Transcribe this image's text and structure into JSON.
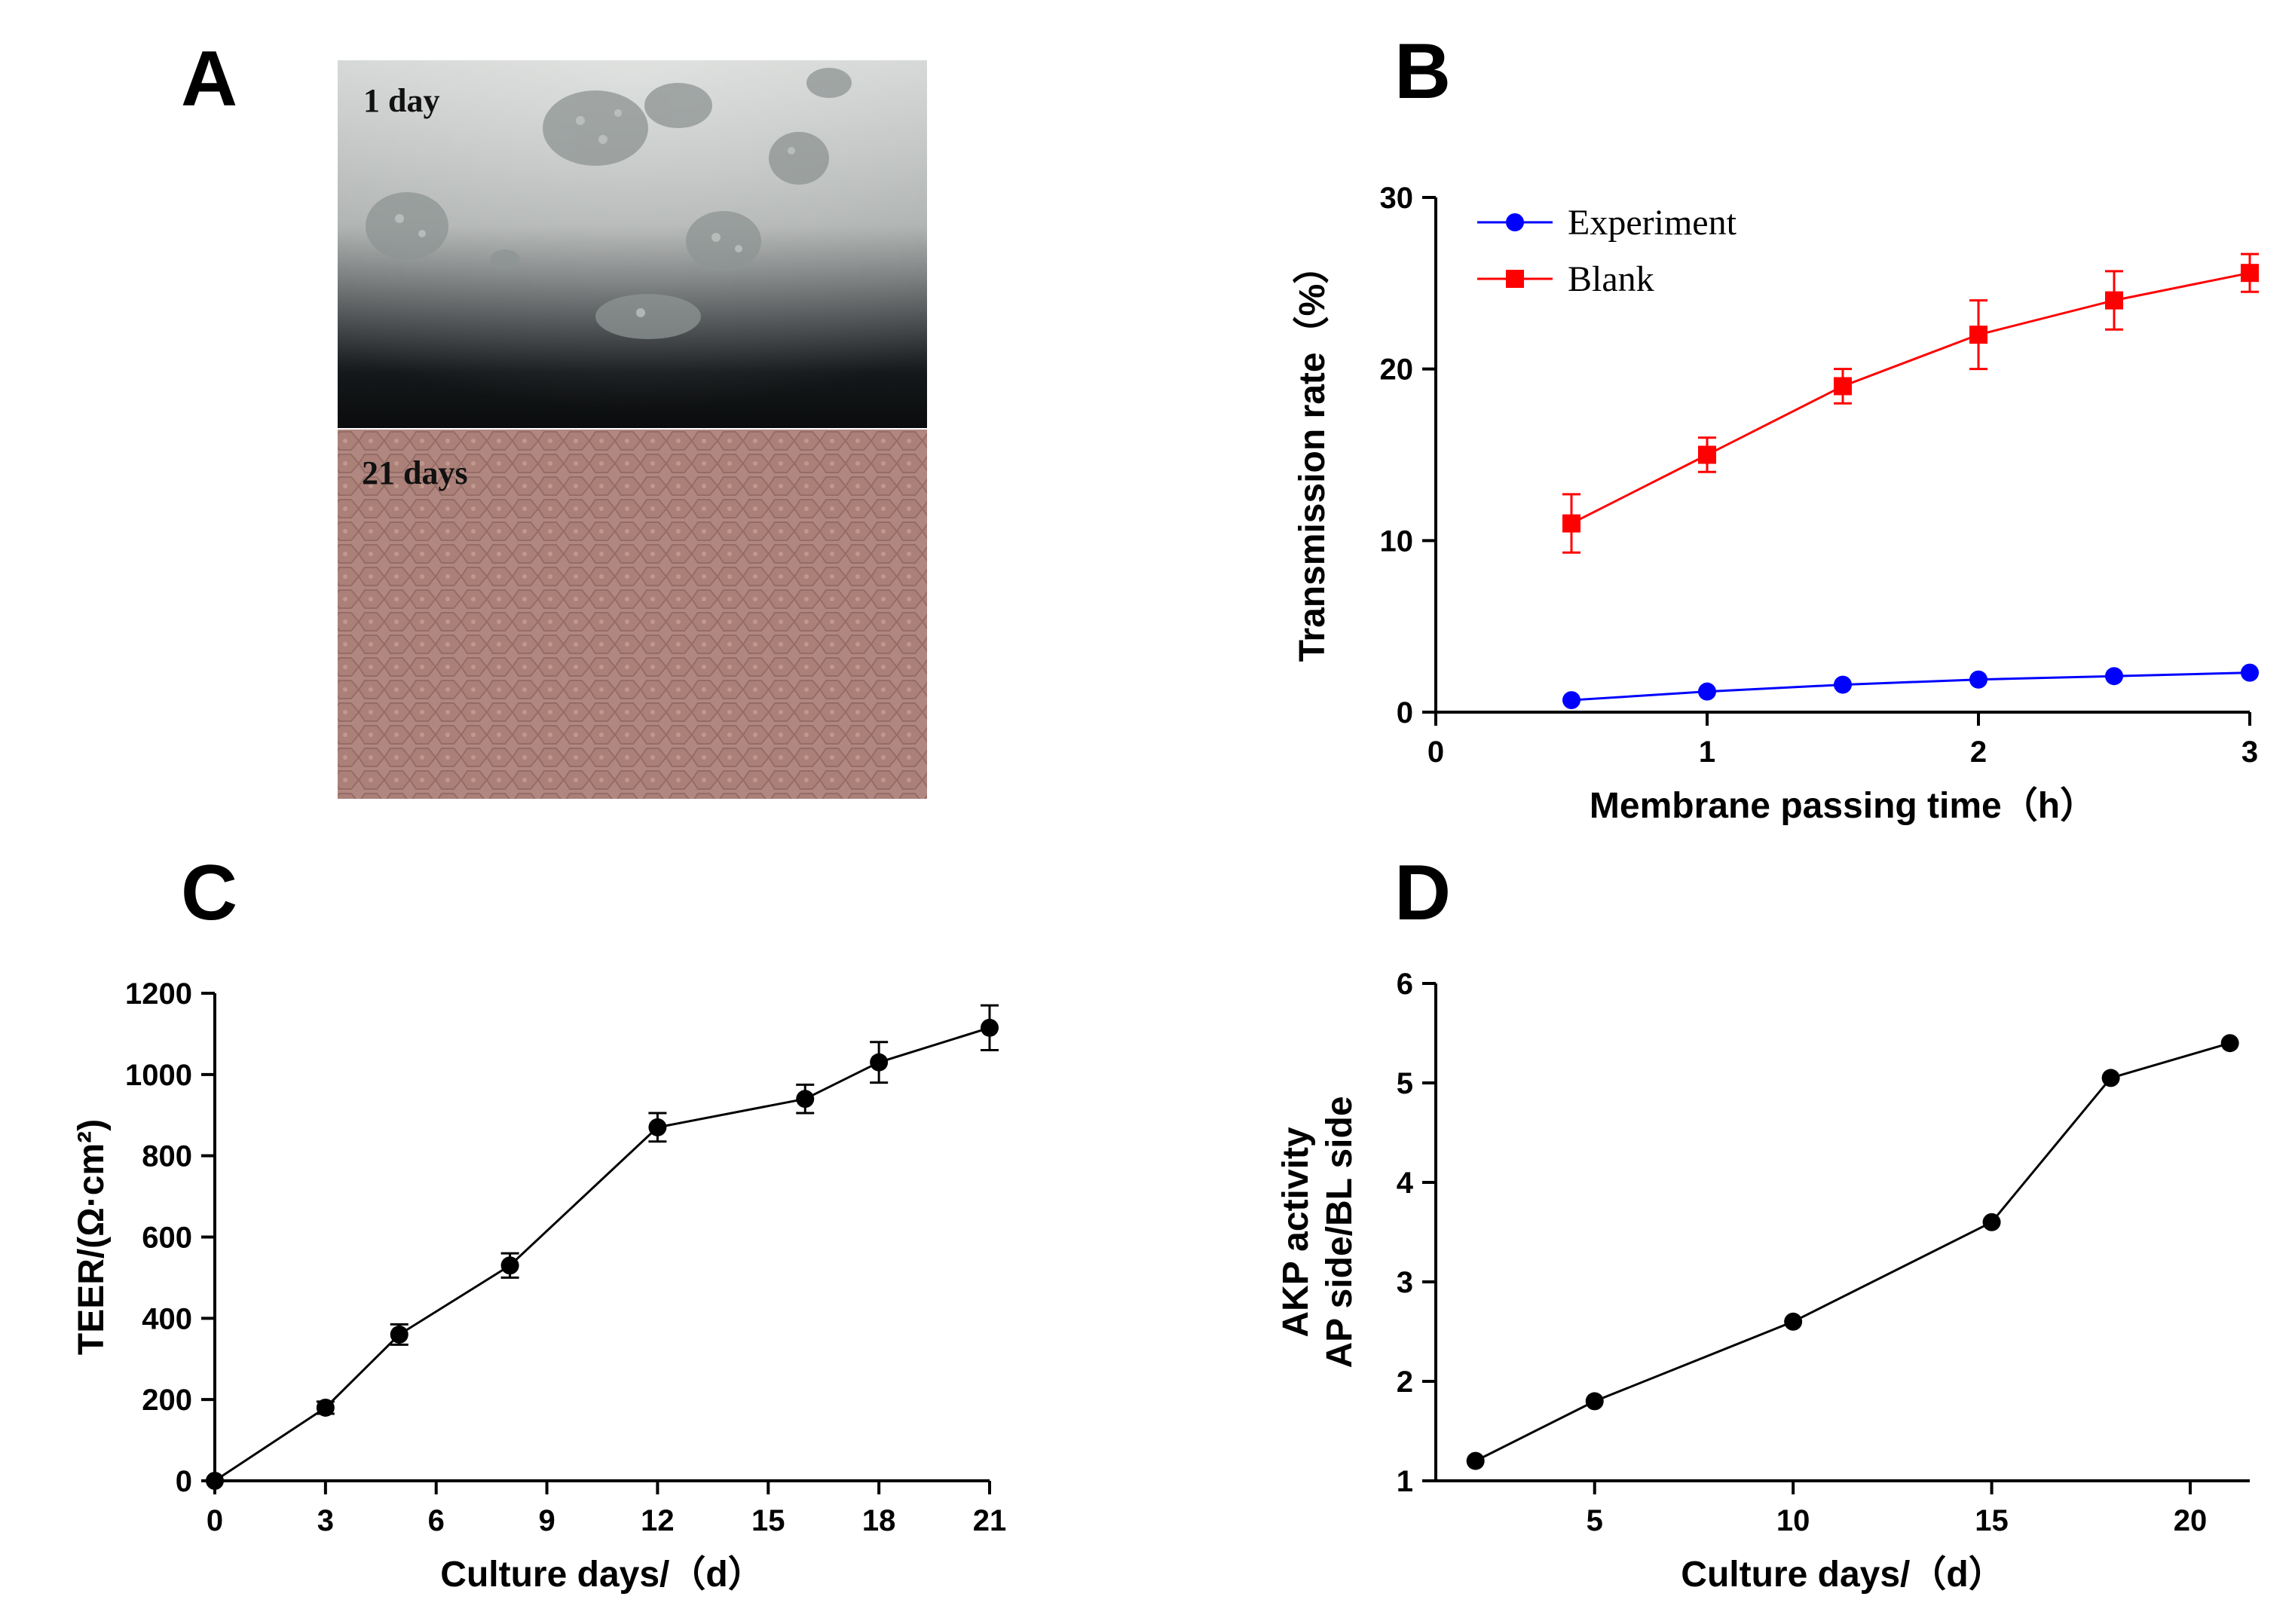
{
  "panels": {
    "a": {
      "letter": "A",
      "photo_top_label": "1 day",
      "photo_bottom_label": "21 days"
    },
    "b": {
      "letter": "B"
    },
    "c": {
      "letter": "C"
    },
    "d": {
      "letter": "D"
    }
  },
  "chart_data": [
    {
      "panel": "B",
      "type": "line",
      "xlabel": "Membrane passing time（h）",
      "ylabel": "Transmission rate（%）",
      "xlim": [
        0,
        3
      ],
      "ylim": [
        0,
        30
      ],
      "xticks": [
        0,
        1,
        2,
        3
      ],
      "yticks": [
        0,
        10,
        20,
        30
      ],
      "grid": false,
      "legend_position": "top-left",
      "x": [
        0.5,
        1.0,
        1.5,
        2.0,
        2.5,
        3.0
      ],
      "series": [
        {
          "name": "Experiment",
          "color": "#0000ff",
          "marker": "circle",
          "values": [
            0.7,
            1.2,
            1.6,
            1.9,
            2.1,
            2.3
          ],
          "errors": [
            0,
            0,
            0,
            0,
            0,
            0
          ]
        },
        {
          "name": "Blank",
          "color": "#ff0000",
          "marker": "square",
          "values": [
            11.0,
            15.0,
            19.0,
            22.0,
            24.0,
            25.6
          ],
          "errors": [
            1.7,
            1.0,
            1.0,
            2.0,
            1.7,
            1.1
          ]
        }
      ]
    },
    {
      "panel": "C",
      "type": "line",
      "xlabel": "Culture days/（d）",
      "ylabel": "TEER/(Ω·cm²)",
      "xlim": [
        0,
        21
      ],
      "ylim": [
        0,
        1200
      ],
      "xticks": [
        0,
        3,
        6,
        9,
        12,
        15,
        18,
        21
      ],
      "yticks": [
        0,
        200,
        400,
        600,
        800,
        1000,
        1200
      ],
      "grid": false,
      "series": [
        {
          "color": "#000000",
          "marker": "circle",
          "x": [
            0,
            3,
            5,
            8,
            12,
            16,
            18,
            21
          ],
          "values": [
            0,
            180,
            360,
            530,
            870,
            940,
            1030,
            1115
          ],
          "errors": [
            0,
            15,
            25,
            30,
            35,
            35,
            50,
            55
          ]
        }
      ]
    },
    {
      "panel": "D",
      "type": "line",
      "xlabel": "Culture days/（d）",
      "ylabel_lines": [
        "AKP activity",
        "AP side/BL side"
      ],
      "xlim": [
        1,
        21.5
      ],
      "ylim": [
        1,
        6
      ],
      "xticks": [
        5,
        10,
        15,
        20
      ],
      "yticks": [
        1,
        2,
        3,
        4,
        5,
        6
      ],
      "grid": false,
      "series": [
        {
          "color": "#000000",
          "marker": "circle",
          "x": [
            2,
            5,
            10,
            15,
            18,
            21
          ],
          "values": [
            1.2,
            1.8,
            2.6,
            3.6,
            5.05,
            5.4
          ]
        }
      ]
    }
  ]
}
